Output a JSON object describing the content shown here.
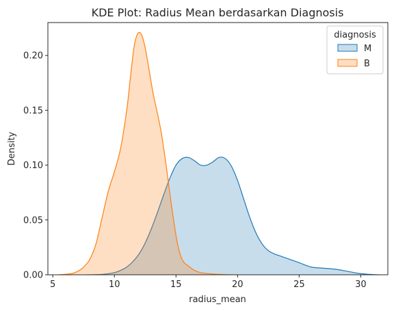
{
  "chart_data": {
    "type": "area",
    "title": "KDE Plot: Radius Mean berdasarkan Diagnosis",
    "xlabel": "radius_mean",
    "ylabel": "Density",
    "xlim": [
      4.6,
      32.2
    ],
    "ylim": [
      0,
      0.23
    ],
    "xticks": [
      5,
      10,
      15,
      20,
      25,
      30
    ],
    "yticks": [
      0.0,
      0.05,
      0.1,
      0.15,
      0.2
    ],
    "grid": false,
    "legend": {
      "title": "diagnosis",
      "placement": "top-right"
    },
    "series": [
      {
        "name": "M",
        "color": "#1f77b4",
        "fill": "#1f77b4",
        "x": [
          7.8,
          9.0,
          10.0,
          10.5,
          11.0,
          11.5,
          12.0,
          12.5,
          13.0,
          13.5,
          14.0,
          14.5,
          15.0,
          15.5,
          16.0,
          16.5,
          17.0,
          17.5,
          18.0,
          18.5,
          19.0,
          19.5,
          20.0,
          20.5,
          21.0,
          21.5,
          22.0,
          22.5,
          23.0,
          23.5,
          24.0,
          25.0,
          26.0,
          27.0,
          28.0,
          29.0,
          30.0,
          31.0,
          31.5
        ],
        "y": [
          0.0,
          0.0003,
          0.002,
          0.004,
          0.007,
          0.012,
          0.019,
          0.029,
          0.042,
          0.057,
          0.073,
          0.088,
          0.1,
          0.106,
          0.107,
          0.104,
          0.1,
          0.1,
          0.103,
          0.107,
          0.106,
          0.099,
          0.086,
          0.069,
          0.052,
          0.038,
          0.028,
          0.022,
          0.019,
          0.017,
          0.015,
          0.011,
          0.007,
          0.006,
          0.005,
          0.003,
          0.001,
          0.0002,
          0.0
        ]
      },
      {
        "name": "B",
        "color": "#ff7f0e",
        "fill": "#ff7f0e",
        "x": [
          5.5,
          6.5,
          7.0,
          7.5,
          8.0,
          8.5,
          9.0,
          9.5,
          10.0,
          10.5,
          11.0,
          11.3,
          11.6,
          11.9,
          12.2,
          12.5,
          12.8,
          13.1,
          13.4,
          13.8,
          14.2,
          14.6,
          15.0,
          15.3,
          15.6,
          16.0,
          16.5,
          17.0,
          18.0,
          19.0,
          20.0
        ],
        "y": [
          0.0,
          0.001,
          0.003,
          0.007,
          0.014,
          0.028,
          0.052,
          0.076,
          0.094,
          0.115,
          0.15,
          0.18,
          0.208,
          0.22,
          0.219,
          0.207,
          0.188,
          0.168,
          0.152,
          0.13,
          0.1,
          0.066,
          0.036,
          0.02,
          0.012,
          0.008,
          0.004,
          0.002,
          0.0007,
          0.0002,
          0.0
        ]
      }
    ]
  }
}
